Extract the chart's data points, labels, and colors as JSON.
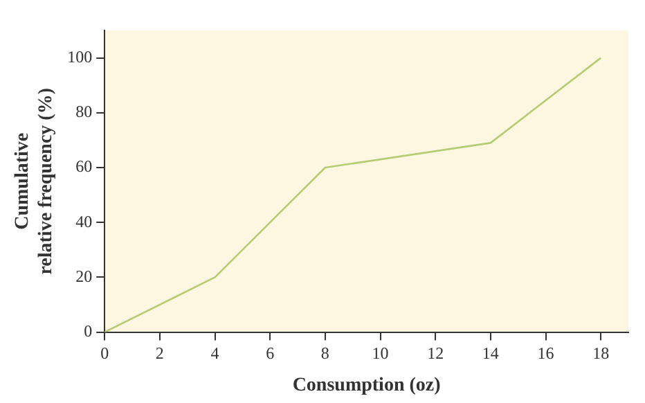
{
  "chart_data": {
    "type": "line",
    "xlabel": "Consumption (oz)",
    "ylabel": "Cumulative relative frequency (%)",
    "series": [
      {
        "color": "#b5cc72",
        "x": [
          0,
          4,
          8,
          14,
          18
        ],
        "values": [
          0,
          20,
          60,
          69,
          100
        ]
      }
    ],
    "xlim": [
      0,
      19
    ],
    "xticks": [
      0,
      2,
      4,
      6,
      8,
      10,
      12,
      14,
      16,
      18
    ],
    "ylim": [
      0,
      110
    ],
    "yticks": [
      0,
      20,
      40,
      60,
      80,
      100
    ],
    "grid": false,
    "legend": false,
    "marker": "none",
    "line_style": "solid"
  }
}
